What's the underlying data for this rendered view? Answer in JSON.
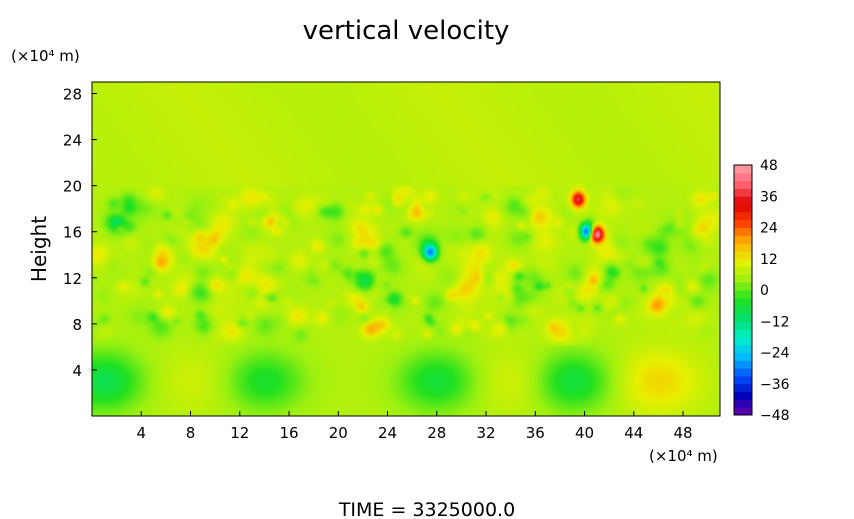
{
  "chart_data": {
    "type": "heatmap",
    "title": "vertical velocity",
    "ylabel": "Height",
    "xlabel": "",
    "y_unit": "(×10⁴ m)",
    "x_unit": "(×10⁴ m)",
    "xlim": [
      0,
      51
    ],
    "ylim": [
      0,
      29
    ],
    "x_ticks": [
      "4",
      "8",
      "12",
      "16",
      "20",
      "24",
      "28",
      "32",
      "36",
      "40",
      "44",
      "48"
    ],
    "y_ticks": [
      "4",
      "8",
      "12",
      "16",
      "20",
      "24",
      "28"
    ],
    "x_tick_values": [
      4,
      8,
      12,
      16,
      20,
      24,
      28,
      32,
      36,
      40,
      44,
      48
    ],
    "y_tick_values": [
      4,
      8,
      12,
      16,
      20,
      24,
      28
    ],
    "colorbar": {
      "min": -48,
      "max": 48,
      "tick_labels": [
        "48",
        "36",
        "24",
        "12",
        "0",
        "−12",
        "−24",
        "−36",
        "−48"
      ],
      "tick_values": [
        48,
        36,
        24,
        12,
        0,
        -12,
        -24,
        -36,
        -48
      ],
      "colors": [
        "#6b00a8",
        "#0000b8",
        "#0050ff",
        "#00b8ff",
        "#00f0c8",
        "#00e070",
        "#20e020",
        "#9bf010",
        "#e8f000",
        "#ffb000",
        "#ff4000",
        "#e00000",
        "#ff6070",
        "#ffa0a8"
      ]
    },
    "field_features": [
      {
        "x": 8.5,
        "y": 3,
        "value": 9,
        "note": "warm"
      },
      {
        "x": 34.5,
        "y": 3,
        "value": 10,
        "note": "warm"
      },
      {
        "x": 46,
        "y": 3,
        "value": 14,
        "note": "warm"
      },
      {
        "x": 1,
        "y": 3,
        "value": -8,
        "note": "cool"
      },
      {
        "x": 14,
        "y": 3,
        "value": -5,
        "note": "cool"
      },
      {
        "x": 28,
        "y": 3,
        "value": -6,
        "note": "cool"
      },
      {
        "x": 39,
        "y": 3,
        "value": -7,
        "note": "cool"
      },
      {
        "x": 41,
        "y": 15.8,
        "value": 46,
        "note": "strong"
      },
      {
        "x": 39.5,
        "y": 18.8,
        "value": 38,
        "note": "strong"
      },
      {
        "x": 40.2,
        "y": 16,
        "value": -36,
        "note": "strong"
      },
      {
        "x": 27.5,
        "y": 14.2,
        "value": -22,
        "note": "strong"
      },
      {
        "x": 24.8,
        "y": 18.7,
        "value": 20,
        "note": "strong"
      },
      {
        "x": 26.5,
        "y": 18,
        "value": 16,
        "note": "strong"
      }
    ]
  },
  "footer": {
    "time_label": "TIME  =  3325000.0"
  }
}
